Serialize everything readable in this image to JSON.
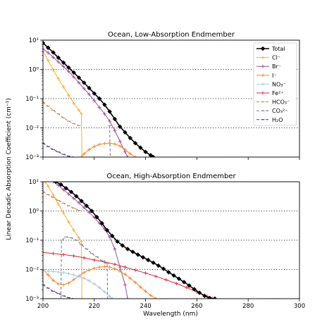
{
  "figure": {
    "ylabel": "Linear Decadic Absorption Coefficient (cm⁻¹)",
    "xlabel": "Wavelength (nm)"
  },
  "chart_data": [
    {
      "type": "line",
      "title": "Ocean, Low-Absorption Endmember",
      "yscale": "log",
      "xlim": [
        200,
        300
      ],
      "ylim": [
        0.001,
        10
      ],
      "xticks": [
        "200",
        "220",
        "240",
        "260",
        "280",
        "300"
      ],
      "yticks": [
        "10⁻³",
        "10⁻²",
        "10⁻¹",
        "10⁰",
        "10¹"
      ],
      "grid": "horizontal dotted",
      "legend_position": "top-right",
      "series": [
        {
          "name": "Total",
          "color": "#000000",
          "marker": "diamond",
          "points": [
            [
              200,
              8
            ],
            [
              202,
              5.5
            ],
            [
              204,
              3.8
            ],
            [
              206,
              2.5
            ],
            [
              208,
              1.7
            ],
            [
              210,
              1.15
            ],
            [
              212,
              0.78
            ],
            [
              214,
              0.52
            ],
            [
              216,
              0.35
            ],
            [
              218,
              0.23
            ],
            [
              220,
              0.15
            ],
            [
              222,
              0.1
            ],
            [
              224,
              0.062
            ],
            [
              226,
              0.036
            ],
            [
              228,
              0.02
            ],
            [
              230,
              0.011
            ],
            [
              232,
              0.007
            ],
            [
              234,
              0.0045
            ],
            [
              236,
              0.003
            ],
            [
              238,
              0.0021
            ],
            [
              240,
              0.0015
            ],
            [
              242,
              0.00115
            ],
            [
              243,
              0.001
            ]
          ]
        },
        {
          "name": "Cl⁻",
          "color": "#f2b134",
          "marker": "plus",
          "points": [
            [
              200,
              4.2
            ],
            [
              202,
              2.0
            ],
            [
              204,
              0.95
            ],
            [
              206,
              0.48
            ],
            [
              208,
              0.25
            ],
            [
              210,
              0.13
            ],
            [
              212,
              0.07
            ],
            [
              214,
              0.04
            ],
            [
              215,
              0.03
            ],
            [
              215.2,
              0.001
            ]
          ]
        },
        {
          "name": "Br⁻",
          "color": "#9b4f96",
          "marker": "plus",
          "points": [
            [
              200,
              5
            ],
            [
              202,
              3.7
            ],
            [
              204,
              2.6
            ],
            [
              206,
              1.8
            ],
            [
              208,
              1.25
            ],
            [
              210,
              0.85
            ],
            [
              212,
              0.55
            ],
            [
              214,
              0.35
            ],
            [
              216,
              0.22
            ],
            [
              218,
              0.14
            ],
            [
              220,
              0.085
            ],
            [
              222,
              0.05
            ],
            [
              224,
              0.03
            ],
            [
              226,
              0.017
            ],
            [
              228,
              0.008
            ],
            [
              230,
              0.0035
            ],
            [
              232,
              0.0015
            ],
            [
              233,
              0.001
            ]
          ]
        },
        {
          "name": "I⁻",
          "color": "#f5862c",
          "marker": "plus",
          "points": [
            [
              215,
              0.001
            ],
            [
              216,
              0.0013
            ],
            [
              218,
              0.0018
            ],
            [
              220,
              0.0023
            ],
            [
              222,
              0.0027
            ],
            [
              224,
              0.0029
            ],
            [
              226,
              0.003
            ],
            [
              228,
              0.0028
            ],
            [
              230,
              0.0024
            ],
            [
              232,
              0.0018
            ],
            [
              234,
              0.0013
            ],
            [
              236,
              0.001
            ]
          ]
        },
        {
          "name": "NO₃⁻",
          "color": "#a9c8e0",
          "marker": "plus",
          "points": []
        },
        {
          "name": "Fe²⁺",
          "color": "#d7263d",
          "marker": "plus",
          "points": []
        },
        {
          "name": "HCO₃⁻",
          "color": "#b8804a",
          "marker": "dash",
          "points": [
            [
              200,
              0.075
            ],
            [
              202,
              0.055
            ],
            [
              204,
              0.04
            ],
            [
              206,
              0.03
            ],
            [
              208,
              0.022
            ],
            [
              210,
              0.017
            ],
            [
              212,
              0.014
            ],
            [
              214,
              0.012
            ]
          ]
        },
        {
          "name": "CO₃²⁻",
          "color": "#777777",
          "marker": "dash",
          "points": [
            [
              226,
              0.012
            ],
            [
              226.2,
              0.001
            ]
          ]
        },
        {
          "name": "H₂O",
          "color": "#4b2a7a",
          "marker": "dash",
          "points": [
            [
              200,
              0.003
            ],
            [
              202,
              0.0023
            ],
            [
              204,
              0.0018
            ],
            [
              206,
              0.0015
            ],
            [
              208,
              0.00125
            ],
            [
              210,
              0.00108
            ],
            [
              212,
              0.001
            ]
          ]
        }
      ]
    },
    {
      "type": "line",
      "title": "Ocean, High-Absorption Endmember",
      "yscale": "log",
      "xlim": [
        200,
        300
      ],
      "ylim": [
        0.001,
        10
      ],
      "xticks": [
        "200",
        "220",
        "240",
        "260",
        "280",
        "300"
      ],
      "yticks": [
        "10⁻³",
        "10⁻²",
        "10⁻¹",
        "10⁰",
        "10¹"
      ],
      "grid": "horizontal dotted",
      "series": [
        {
          "name": "Total",
          "color": "#000000",
          "marker": "diamond",
          "points": [
            [
              205,
              10
            ],
            [
              207,
              8
            ],
            [
              209,
              6
            ],
            [
              211,
              4.5
            ],
            [
              213,
              3.2
            ],
            [
              215,
              2.2
            ],
            [
              217,
              1.5
            ],
            [
              219,
              1.0
            ],
            [
              221,
              0.62
            ],
            [
              223,
              0.38
            ],
            [
              225,
              0.22
            ],
            [
              227,
              0.14
            ],
            [
              229,
              0.09
            ],
            [
              231,
              0.066
            ],
            [
              233,
              0.05
            ],
            [
              235,
              0.04
            ],
            [
              237,
              0.032
            ],
            [
              239,
              0.026
            ],
            [
              241,
              0.021
            ],
            [
              243,
              0.017
            ],
            [
              245,
              0.0135
            ],
            [
              247,
              0.0105
            ],
            [
              249,
              0.008
            ],
            [
              251,
              0.0062
            ],
            [
              253,
              0.0048
            ],
            [
              255,
              0.0037
            ],
            [
              257,
              0.0028
            ],
            [
              259,
              0.0021
            ],
            [
              261,
              0.0016
            ],
            [
              263,
              0.00125
            ],
            [
              265,
              0.00105
            ],
            [
              267,
              0.001
            ]
          ]
        },
        {
          "name": "Cl⁻",
          "color": "#f2b134",
          "marker": "plus",
          "points": [
            [
              201,
              10
            ],
            [
              202,
              7
            ],
            [
              204,
              3.5
            ],
            [
              206,
              1.7
            ],
            [
              208,
              0.85
            ],
            [
              210,
              0.42
            ],
            [
              212,
              0.22
            ],
            [
              214,
              0.12
            ],
            [
              215,
              0.09
            ],
            [
              215.2,
              0.001
            ]
          ]
        },
        {
          "name": "Br⁻",
          "color": "#9b4f96",
          "marker": "plus",
          "points": [
            [
              204,
              10
            ],
            [
              206,
              7.5
            ],
            [
              208,
              5.3
            ],
            [
              210,
              3.8
            ],
            [
              212,
              2.7
            ],
            [
              214,
              1.9
            ],
            [
              216,
              1.3
            ],
            [
              218,
              0.9
            ],
            [
              220,
              0.6
            ],
            [
              222,
              0.38
            ],
            [
              224,
              0.24
            ],
            [
              226,
              0.13
            ],
            [
              228,
              0.05
            ],
            [
              230,
              0.012
            ],
            [
              232,
              0.003
            ],
            [
              233,
              0.001
            ]
          ]
        },
        {
          "name": "I⁻",
          "color": "#f5862c",
          "marker": "plus",
          "points": [
            [
              200,
              0.01
            ],
            [
              202,
              0.0065
            ],
            [
              204,
              0.0042
            ],
            [
              206,
              0.0032
            ],
            [
              208,
              0.003
            ],
            [
              210,
              0.0034
            ],
            [
              212,
              0.0045
            ],
            [
              214,
              0.006
            ],
            [
              216,
              0.0078
            ],
            [
              218,
              0.0095
            ],
            [
              220,
              0.011
            ],
            [
              222,
              0.012
            ],
            [
              224,
              0.0125
            ],
            [
              226,
              0.012
            ],
            [
              228,
              0.0105
            ],
            [
              230,
              0.0088
            ],
            [
              232,
              0.0068
            ],
            [
              234,
              0.005
            ],
            [
              236,
              0.0036
            ],
            [
              238,
              0.0025
            ],
            [
              240,
              0.0018
            ],
            [
              242,
              0.0013
            ],
            [
              244,
              0.001
            ]
          ]
        },
        {
          "name": "NO₃⁻",
          "color": "#a9c8e0",
          "marker": "plus",
          "points": [
            [
              200,
              0.009
            ],
            [
              202,
              0.0088
            ],
            [
              204,
              0.0085
            ],
            [
              206,
              0.0082
            ],
            [
              208,
              0.0078
            ],
            [
              210,
              0.0072
            ],
            [
              212,
              0.0065
            ],
            [
              214,
              0.0058
            ],
            [
              216,
              0.005
            ],
            [
              218,
              0.0041
            ],
            [
              220,
              0.0032
            ],
            [
              222,
              0.0024
            ],
            [
              224,
              0.0017
            ],
            [
              226,
              0.0012
            ],
            [
              227,
              0.001
            ]
          ]
        },
        {
          "name": "Fe²⁺",
          "color": "#d7263d",
          "marker": "plus",
          "points": [
            [
              200,
              0.038
            ],
            [
              204,
              0.035
            ],
            [
              208,
              0.032
            ],
            [
              212,
              0.029
            ],
            [
              216,
              0.025
            ],
            [
              220,
              0.021
            ],
            [
              224,
              0.018
            ],
            [
              228,
              0.015
            ],
            [
              232,
              0.012
            ],
            [
              236,
              0.0095
            ],
            [
              240,
              0.0075
            ],
            [
              244,
              0.0058
            ],
            [
              248,
              0.0044
            ],
            [
              252,
              0.0033
            ],
            [
              256,
              0.0024
            ],
            [
              260,
              0.0017
            ],
            [
              264,
              0.0012
            ],
            [
              266,
              0.001
            ]
          ]
        },
        {
          "name": "HCO₃⁻",
          "color": "#b8804a",
          "marker": "dash",
          "points": [
            [
              200,
              4.5
            ],
            [
              202,
              3.6
            ],
            [
              204,
              2.9
            ],
            [
              206,
              2.3
            ],
            [
              208,
              1.85
            ],
            [
              210,
              1.5
            ],
            [
              212,
              1.25
            ],
            [
              214,
              1.05
            ]
          ]
        },
        {
          "name": "CO₃²⁻",
          "color": "#777777",
          "marker": "dash",
          "points": [
            [
              207,
              0.001
            ],
            [
              207.2,
              0.1
            ],
            [
              209,
              0.13
            ],
            [
              211,
              0.12
            ],
            [
              213,
              0.1
            ],
            [
              215,
              0.07
            ],
            [
              217,
              0.05
            ],
            [
              219,
              0.035
            ],
            [
              221,
              0.027
            ],
            [
              223,
              0.02
            ],
            [
              225,
              0.016
            ],
            [
              225.2,
              0.001
            ]
          ]
        },
        {
          "name": "H₂O",
          "color": "#4b2a7a",
          "marker": "dash",
          "points": [
            [
              200,
              0.003
            ],
            [
              202,
              0.0023
            ],
            [
              204,
              0.0018
            ],
            [
              206,
              0.0015
            ],
            [
              208,
              0.00125
            ],
            [
              210,
              0.00108
            ],
            [
              212,
              0.001
            ]
          ]
        }
      ]
    }
  ]
}
